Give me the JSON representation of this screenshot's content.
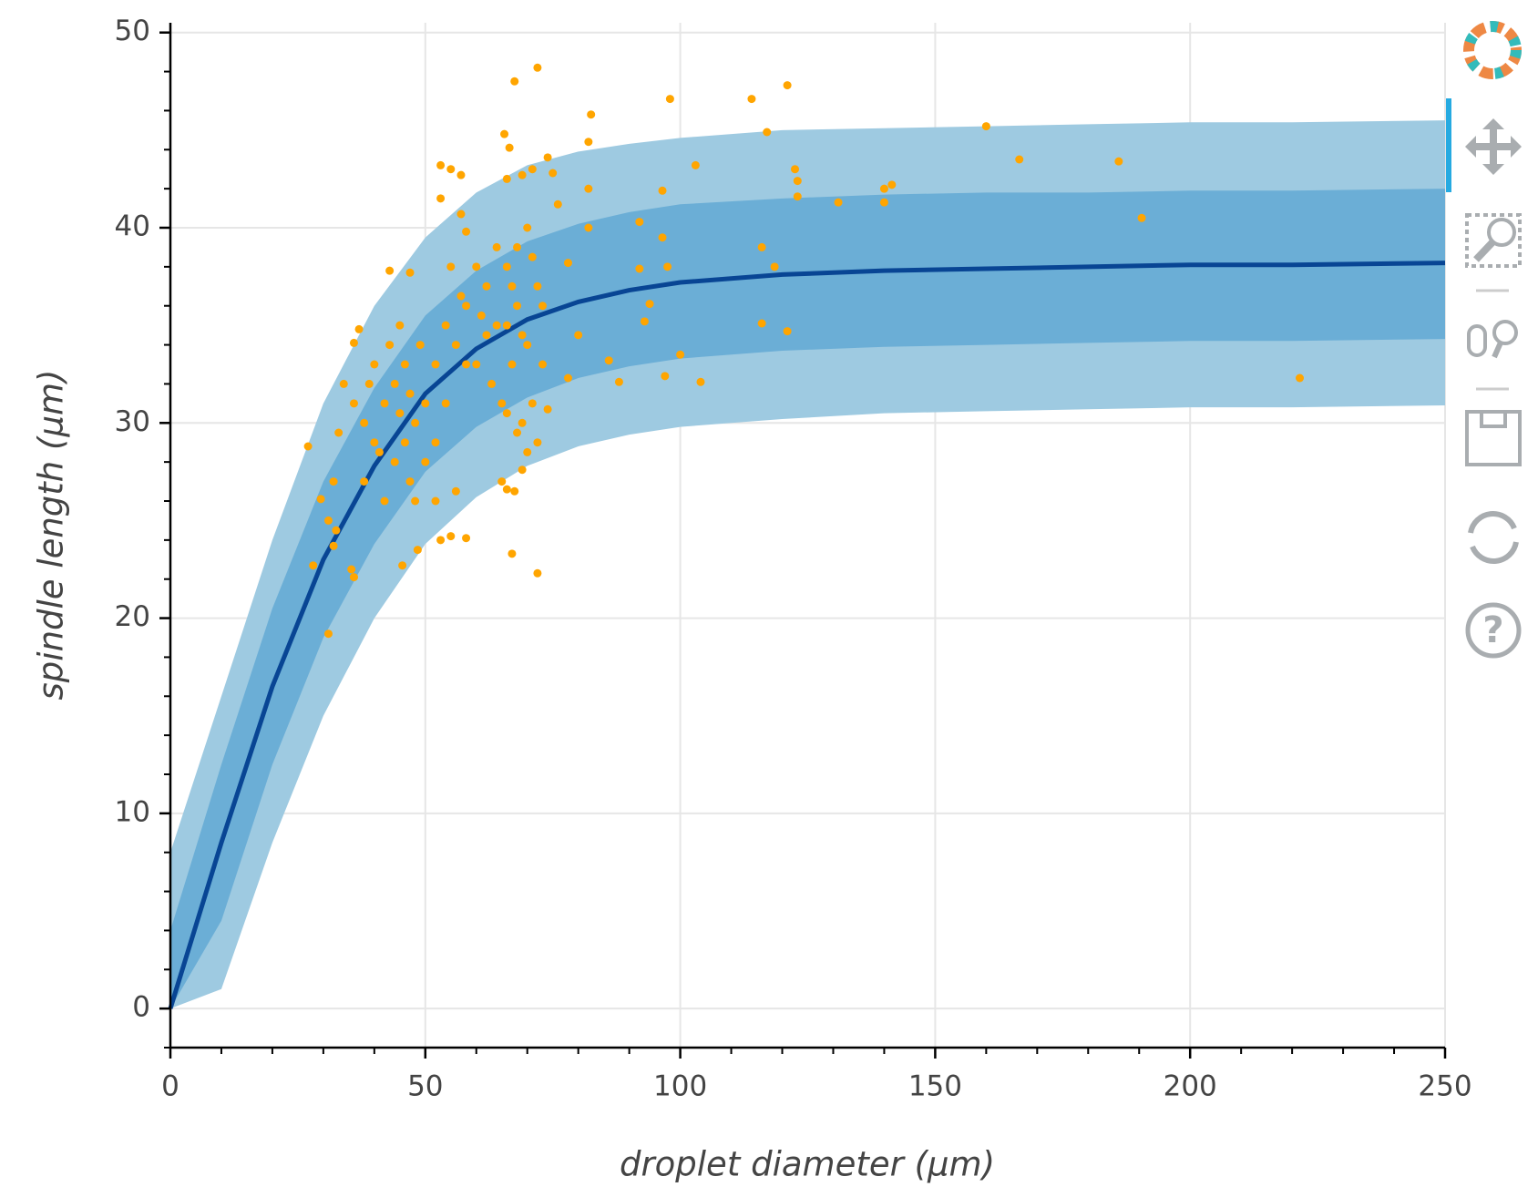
{
  "chart_data": {
    "type": "scatter",
    "xlabel": "droplet diameter (μm)",
    "ylabel": "spindle length (μm)",
    "xlim": [
      0,
      250
    ],
    "ylim": [
      -2,
      50.5
    ],
    "xticks": [
      0,
      50,
      100,
      150,
      200,
      250
    ],
    "yticks": [
      0,
      10,
      20,
      30,
      40,
      50
    ],
    "xminorticks": [
      10,
      20,
      30,
      40,
      60,
      70,
      80,
      90,
      110,
      120,
      130,
      140,
      160,
      170,
      180,
      190,
      210,
      220,
      230,
      240
    ],
    "yminorticks": [
      -2,
      2,
      4,
      6,
      8,
      12,
      14,
      16,
      18,
      22,
      24,
      26,
      28,
      32,
      34,
      36,
      38,
      42,
      44,
      46,
      48
    ],
    "grid": true,
    "curve": {
      "x": [
        0,
        10,
        20,
        30,
        40,
        50,
        60,
        70,
        80,
        90,
        100,
        120,
        140,
        160,
        180,
        200,
        220,
        250
      ],
      "median": [
        0,
        8.5,
        16.5,
        23,
        27.8,
        31.5,
        33.8,
        35.3,
        36.2,
        36.8,
        37.2,
        37.6,
        37.8,
        37.9,
        38.0,
        38.1,
        38.1,
        38.2
      ],
      "inner_lower": [
        0,
        4.5,
        12.5,
        19,
        23.8,
        27.5,
        29.8,
        31.3,
        32.3,
        32.9,
        33.3,
        33.7,
        33.9,
        34.0,
        34.1,
        34.2,
        34.2,
        34.3
      ],
      "inner_upper": [
        4,
        12.5,
        20.5,
        27,
        31.8,
        35.5,
        37.8,
        39.3,
        40.2,
        40.8,
        41.2,
        41.5,
        41.7,
        41.8,
        41.8,
        41.9,
        41.9,
        42.0
      ],
      "outer_lower": [
        0,
        1,
        8.5,
        15,
        20,
        23.8,
        26.2,
        27.8,
        28.8,
        29.4,
        29.8,
        30.2,
        30.5,
        30.6,
        30.7,
        30.8,
        30.8,
        30.9
      ],
      "outer_upper": [
        8,
        16,
        24,
        31,
        36,
        39.5,
        41.8,
        43.2,
        43.9,
        44.3,
        44.6,
        45.0,
        45.1,
        45.2,
        45.3,
        45.4,
        45.4,
        45.5
      ],
      "line_color": "#084594",
      "inner_color": "#6baed6",
      "outer_color": "#9ecae1"
    },
    "points": {
      "color": "#ffa500",
      "x": [
        67.5,
        72,
        98,
        114,
        121,
        117,
        82.5,
        82,
        65.5,
        66.5,
        74,
        103,
        122.5,
        123,
        123,
        131,
        140,
        140,
        141.5,
        160,
        166.5,
        186,
        190.5,
        221.5,
        96.5,
        92,
        96.5,
        97.5,
        116,
        118.5,
        116,
        121,
        100,
        97,
        104,
        88,
        93,
        94,
        92,
        86,
        72,
        67,
        53,
        55,
        58,
        48.5,
        45.5,
        31,
        28,
        27,
        29.5,
        36,
        35.5,
        66,
        67.5,
        65,
        69,
        56,
        52,
        74,
        78,
        80,
        82,
        82,
        78,
        76,
        75,
        71,
        69,
        66,
        57,
        55,
        53,
        53,
        57,
        58,
        43,
        47,
        37,
        36,
        34,
        33,
        32,
        31,
        32,
        32.5,
        38,
        40,
        42,
        44,
        46,
        48,
        40,
        42,
        45,
        47,
        50,
        38,
        36,
        44,
        46,
        49,
        41,
        43,
        48,
        39,
        52,
        54,
        56,
        58,
        60,
        62,
        64,
        66,
        68,
        70,
        72,
        60,
        63,
        65,
        67,
        69,
        71,
        68,
        70,
        73,
        66,
        62,
        58,
        55,
        57,
        61,
        64,
        67,
        69,
        71,
        73,
        70,
        68,
        72,
        66,
        50,
        52,
        54,
        47,
        45
      ],
      "y": [
        47.5,
        48.2,
        46.6,
        46.6,
        47.3,
        44.9,
        45.8,
        44.4,
        44.8,
        44.1,
        43.6,
        43.2,
        43,
        42.4,
        41.6,
        41.3,
        41.3,
        42.0,
        42.2,
        45.2,
        43.5,
        43.4,
        40.5,
        32.3,
        41.9,
        40.3,
        39.5,
        38.0,
        39,
        38,
        35.1,
        34.7,
        33.5,
        32.4,
        32.1,
        32.1,
        35.2,
        36.1,
        37.9,
        33.2,
        22.3,
        23.3,
        24.0,
        24.2,
        24.1,
        23.5,
        22.7,
        19.2,
        22.7,
        28.8,
        26.1,
        22.1,
        22.5,
        26.6,
        26.5,
        27.0,
        27.6,
        26.5,
        26.0,
        30.7,
        32.3,
        34.5,
        40.0,
        42.0,
        38.2,
        41.2,
        42.8,
        43.0,
        42.7,
        42.5,
        42.7,
        43.0,
        43.2,
        41.5,
        40.7,
        39.8,
        37.8,
        37.7,
        34.8,
        34.1,
        32.0,
        29.5,
        27.0,
        25.0,
        23.7,
        24.5,
        30,
        29,
        31,
        28,
        33,
        30,
        33,
        26,
        35,
        27,
        31,
        27,
        31,
        32,
        29,
        34,
        28.5,
        34,
        26,
        32,
        33,
        35,
        34,
        36,
        33,
        37,
        35,
        38,
        36,
        34,
        37,
        38,
        32,
        31,
        33,
        30,
        31,
        39,
        40,
        36,
        35,
        34.5,
        33,
        38,
        36.5,
        35.5,
        39,
        37,
        34.5,
        38.5,
        33,
        28.5,
        29.5,
        29,
        30.5,
        28,
        29,
        31,
        31.5,
        30.5
      ]
    }
  }
}
